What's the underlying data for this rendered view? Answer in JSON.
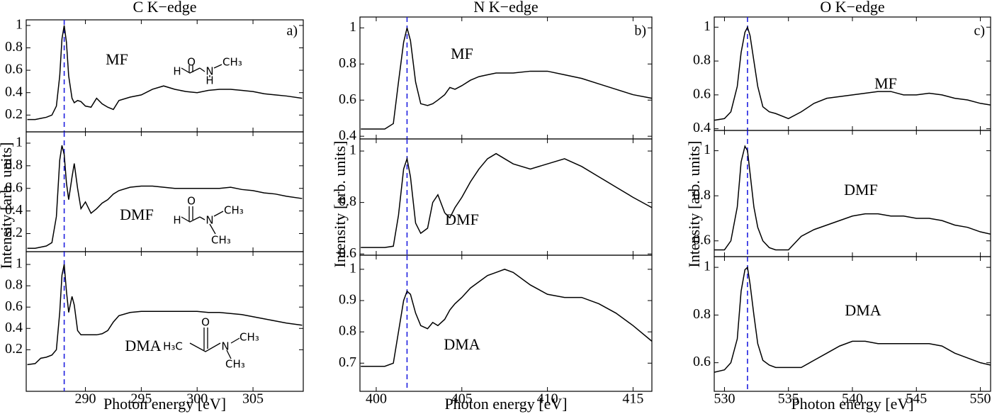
{
  "chart_data": [
    {
      "type": "line",
      "title": "C K−edge",
      "x_label": "Photon energy [eV]",
      "y_label": "Intensity [arb. units]",
      "annotation": "a)",
      "xlim": [
        284.7,
        309.5
      ],
      "xticks": [
        290,
        295,
        300,
        305
      ],
      "reference_line": 288.1,
      "reference_color": "#1f1fdf",
      "x": [
        284.8,
        285.5,
        286,
        286.5,
        287,
        287.4,
        287.7,
        287.9,
        288.1,
        288.3,
        288.5,
        288.8,
        289.0,
        289.3,
        289.6,
        290,
        290.5,
        291,
        291.5,
        292,
        292.5,
        293,
        294,
        295,
        296,
        297,
        298,
        299,
        300,
        301,
        302,
        303,
        304,
        305,
        306,
        307,
        308,
        309.4
      ],
      "panels": [
        {
          "ylim": [
            0.05,
            1.05
          ],
          "yticks": [
            0.2,
            0.4,
            0.6,
            0.8,
            1
          ],
          "atoms": [
            "O",
            "H",
            "N",
            "CH₃",
            "H"
          ],
          "series": [
            {
              "name": "MF",
              "color": "#000000",
              "values": [
                0.16,
                0.16,
                0.17,
                0.18,
                0.2,
                0.28,
                0.55,
                0.88,
                1.0,
                0.85,
                0.55,
                0.35,
                0.31,
                0.33,
                0.32,
                0.28,
                0.27,
                0.35,
                0.3,
                0.27,
                0.25,
                0.33,
                0.36,
                0.38,
                0.43,
                0.46,
                0.43,
                0.41,
                0.4,
                0.42,
                0.43,
                0.43,
                0.42,
                0.41,
                0.39,
                0.38,
                0.37,
                0.35
              ]
            }
          ]
        },
        {
          "ylim": [
            0.04,
            1.1
          ],
          "yticks": [
            0.2,
            0.4,
            0.6,
            0.8,
            1
          ],
          "atoms": [
            "O",
            "H",
            "N",
            "CH₃",
            "CH₃"
          ],
          "series": [
            {
              "name": "DMF",
              "color": "#000000",
              "values": [
                0.07,
                0.07,
                0.08,
                0.09,
                0.12,
                0.35,
                0.85,
                0.98,
                0.9,
                0.65,
                0.5,
                0.7,
                0.82,
                0.6,
                0.42,
                0.48,
                0.38,
                0.42,
                0.47,
                0.5,
                0.55,
                0.58,
                0.61,
                0.62,
                0.62,
                0.61,
                0.6,
                0.6,
                0.6,
                0.6,
                0.6,
                0.61,
                0.59,
                0.58,
                0.56,
                0.55,
                0.53,
                0.51
              ]
            }
          ]
        },
        {
          "ylim": [
            -0.19,
            1.12
          ],
          "yticks": [
            0.2,
            0.4,
            0.6,
            0.8,
            1
          ],
          "atoms": [
            "O",
            "H₃C",
            "N",
            "CH₃",
            "CH₃"
          ],
          "series": [
            {
              "name": "DMA",
              "color": "#000000",
              "values": [
                0.06,
                0.07,
                0.12,
                0.13,
                0.15,
                0.2,
                0.55,
                0.9,
                1.0,
                0.75,
                0.55,
                0.7,
                0.62,
                0.38,
                0.34,
                0.34,
                0.34,
                0.34,
                0.35,
                0.38,
                0.46,
                0.52,
                0.55,
                0.56,
                0.56,
                0.56,
                0.56,
                0.56,
                0.56,
                0.55,
                0.55,
                0.54,
                0.53,
                0.51,
                0.49,
                0.47,
                0.45,
                0.43
              ]
            }
          ]
        }
      ]
    },
    {
      "type": "line",
      "title": "N K−edge",
      "x_label": "Photon energy [eV]",
      "y_label": "Intensity [arb. units]",
      "annotation": "b)",
      "xlim": [
        399.05,
        416.1
      ],
      "xticks": [
        400,
        405,
        410,
        415
      ],
      "reference_line": 401.8,
      "reference_color": "#1f1fdf",
      "x": [
        399.1,
        399.5,
        400,
        400.5,
        401,
        401.3,
        401.6,
        401.8,
        402,
        402.3,
        402.6,
        403,
        403.3,
        403.6,
        404,
        404.3,
        404.6,
        405,
        405.5,
        406,
        406.5,
        407,
        407.5,
        408,
        409,
        410,
        411,
        412,
        413,
        414,
        415,
        416.1
      ],
      "panels": [
        {
          "ylim": [
            0.385,
            1.06
          ],
          "yticks": [
            0.4,
            0.6,
            0.8,
            1
          ],
          "series": [
            {
              "name": "MF",
              "color": "#000000",
              "values": [
                0.44,
                0.44,
                0.44,
                0.44,
                0.47,
                0.7,
                0.92,
                1.0,
                0.93,
                0.7,
                0.58,
                0.57,
                0.58,
                0.6,
                0.63,
                0.67,
                0.66,
                0.68,
                0.71,
                0.73,
                0.74,
                0.75,
                0.75,
                0.75,
                0.76,
                0.76,
                0.74,
                0.72,
                0.69,
                0.66,
                0.63,
                0.61
              ]
            }
          ]
        },
        {
          "ylim": [
            0.595,
            1.047
          ],
          "yticks": [
            0.6,
            0.8,
            1
          ],
          "series": [
            {
              "name": "DMF",
              "color": "#000000",
              "values": [
                0.625,
                0.625,
                0.625,
                0.625,
                0.63,
                0.75,
                0.93,
                0.97,
                0.9,
                0.72,
                0.68,
                0.7,
                0.8,
                0.83,
                0.76,
                0.74,
                0.78,
                0.82,
                0.88,
                0.93,
                0.97,
                0.99,
                0.97,
                0.95,
                0.93,
                0.95,
                0.97,
                0.94,
                0.9,
                0.86,
                0.82,
                0.78
              ]
            }
          ]
        },
        {
          "ylim": [
            0.61,
            1.045
          ],
          "yticks": [
            0.7,
            0.8,
            0.9,
            1
          ],
          "series": [
            {
              "name": "DMA",
              "color": "#000000",
              "values": [
                0.69,
                0.69,
                0.69,
                0.69,
                0.7,
                0.8,
                0.9,
                0.93,
                0.92,
                0.86,
                0.82,
                0.81,
                0.83,
                0.82,
                0.84,
                0.87,
                0.89,
                0.91,
                0.94,
                0.96,
                0.98,
                0.99,
                1.0,
                0.99,
                0.95,
                0.92,
                0.91,
                0.91,
                0.89,
                0.86,
                0.82,
                0.77
              ]
            }
          ]
        }
      ]
    },
    {
      "type": "line",
      "title": "O K−edge",
      "x_label": "Photon energy [eV]",
      "y_label": "Intensity [arb. units]",
      "annotation": "c)",
      "xlim": [
        529.2,
        550.8
      ],
      "xticks": [
        530,
        535,
        540,
        545,
        550
      ],
      "reference_line": 531.8,
      "reference_color": "#1f1fdf",
      "x": [
        529.2,
        530,
        530.5,
        531,
        531.3,
        531.6,
        531.8,
        532,
        532.3,
        532.6,
        533,
        533.5,
        534,
        535,
        536,
        537,
        538,
        539,
        540,
        541,
        542,
        543,
        544,
        545,
        546,
        547,
        548,
        549,
        550,
        550.8
      ],
      "panels": [
        {
          "ylim": [
            0.39,
            1.06
          ],
          "yticks": [
            0.4,
            0.6,
            0.8,
            1
          ],
          "series": [
            {
              "name": "MF",
              "color": "#000000",
              "values": [
                0.45,
                0.46,
                0.5,
                0.65,
                0.85,
                0.97,
                1.0,
                0.95,
                0.8,
                0.65,
                0.53,
                0.5,
                0.49,
                0.46,
                0.5,
                0.55,
                0.58,
                0.59,
                0.6,
                0.61,
                0.62,
                0.62,
                0.6,
                0.6,
                0.61,
                0.6,
                0.58,
                0.57,
                0.55,
                0.54
              ]
            }
          ]
        },
        {
          "ylim": [
            0.53,
            1.09
          ],
          "yticks": [
            0.6,
            0.8,
            1
          ],
          "series": [
            {
              "name": "DMF",
              "color": "#000000",
              "values": [
                0.56,
                0.56,
                0.6,
                0.75,
                0.95,
                1.02,
                1.0,
                0.9,
                0.75,
                0.66,
                0.6,
                0.57,
                0.56,
                0.56,
                0.62,
                0.65,
                0.67,
                0.69,
                0.71,
                0.72,
                0.72,
                0.71,
                0.71,
                0.7,
                0.7,
                0.69,
                0.67,
                0.66,
                0.64,
                0.63
              ]
            }
          ]
        },
        {
          "ylim": [
            0.48,
            1.045
          ],
          "yticks": [
            0.6,
            0.8,
            1
          ],
          "series": [
            {
              "name": "DMA",
              "color": "#000000",
              "values": [
                0.56,
                0.57,
                0.6,
                0.7,
                0.9,
                0.99,
                1.0,
                0.93,
                0.8,
                0.68,
                0.61,
                0.59,
                0.58,
                0.58,
                0.58,
                0.61,
                0.64,
                0.67,
                0.69,
                0.69,
                0.68,
                0.68,
                0.68,
                0.68,
                0.68,
                0.67,
                0.64,
                0.62,
                0.6,
                0.59
              ]
            }
          ]
        }
      ]
    }
  ]
}
